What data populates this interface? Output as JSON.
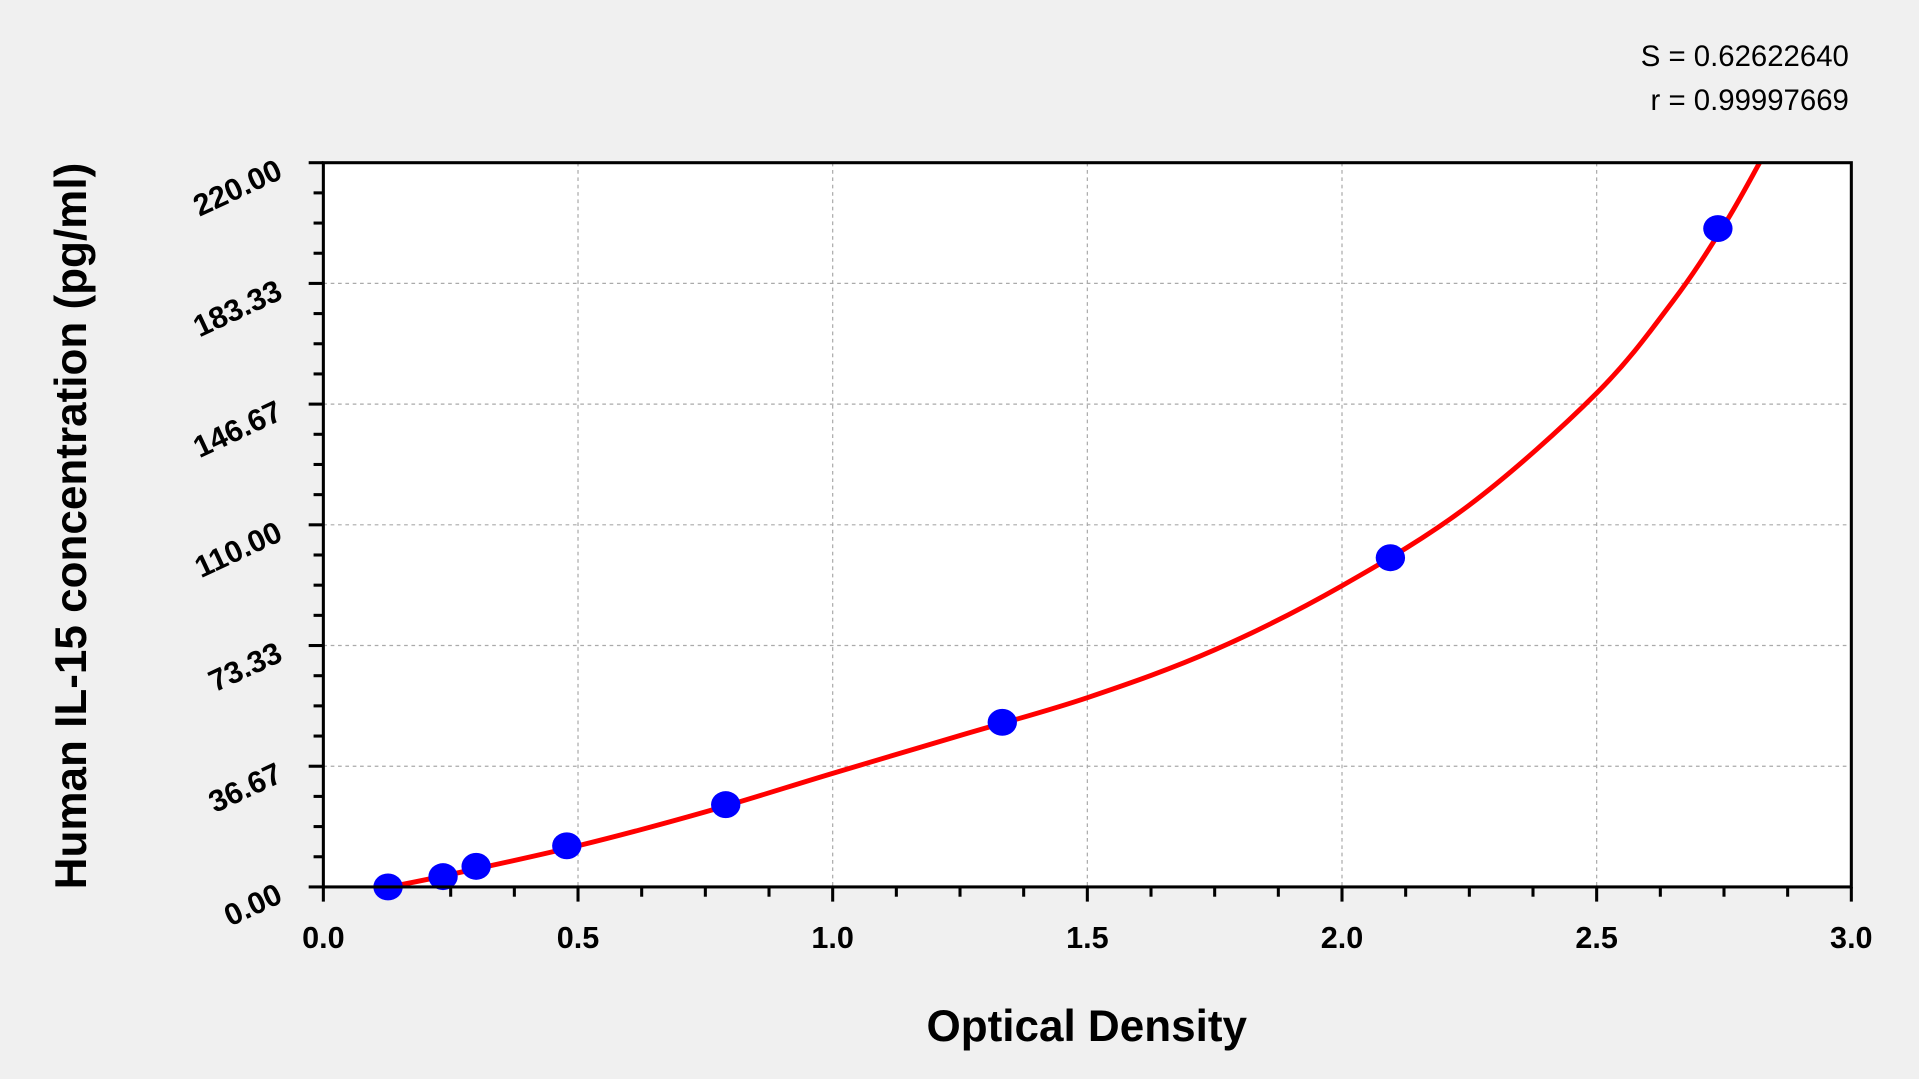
{
  "chart_data": {
    "type": "scatter",
    "xlabel": "Optical Density",
    "ylabel": "Human IL-15 concentration (pg/ml)",
    "xlim": [
      0,
      3.0
    ],
    "ylim": [
      0,
      220
    ],
    "x_ticks": [
      "0.0",
      "0.5",
      "1.0",
      "1.5",
      "2.0",
      "2.5",
      "3.0"
    ],
    "y_ticks": [
      "0.00",
      "36.67",
      "73.33",
      "110.00",
      "146.67",
      "183.33",
      "220.00"
    ],
    "grid": true,
    "stats": {
      "s": "S = 0.62622640",
      "r": "r = 0.99997669"
    },
    "points": [
      {
        "x": 0.127,
        "y": 0
      },
      {
        "x": 0.235,
        "y": 3.13
      },
      {
        "x": 0.3,
        "y": 6.25
      },
      {
        "x": 0.478,
        "y": 12.5
      },
      {
        "x": 0.79,
        "y": 25
      },
      {
        "x": 1.333,
        "y": 50
      },
      {
        "x": 2.095,
        "y": 100
      },
      {
        "x": 2.738,
        "y": 200
      }
    ],
    "fit_curve": [
      {
        "x": 0.13,
        "y": 0
      },
      {
        "x": 0.25,
        "y": 3.8
      },
      {
        "x": 0.5,
        "y": 12.5
      },
      {
        "x": 0.75,
        "y": 22.8
      },
      {
        "x": 1.0,
        "y": 34.5
      },
      {
        "x": 1.25,
        "y": 46
      },
      {
        "x": 1.5,
        "y": 57.5
      },
      {
        "x": 1.75,
        "y": 72
      },
      {
        "x": 2.0,
        "y": 91.5
      },
      {
        "x": 2.25,
        "y": 116
      },
      {
        "x": 2.5,
        "y": 150
      },
      {
        "x": 2.65,
        "y": 178
      },
      {
        "x": 2.75,
        "y": 201
      },
      {
        "x": 2.82,
        "y": 220
      }
    ],
    "colors": {
      "points": "#0000ff",
      "curve": "#ff0000",
      "background": "#f0f0f0",
      "plot": "#ffffff",
      "grid": "#aaaaaa"
    }
  }
}
